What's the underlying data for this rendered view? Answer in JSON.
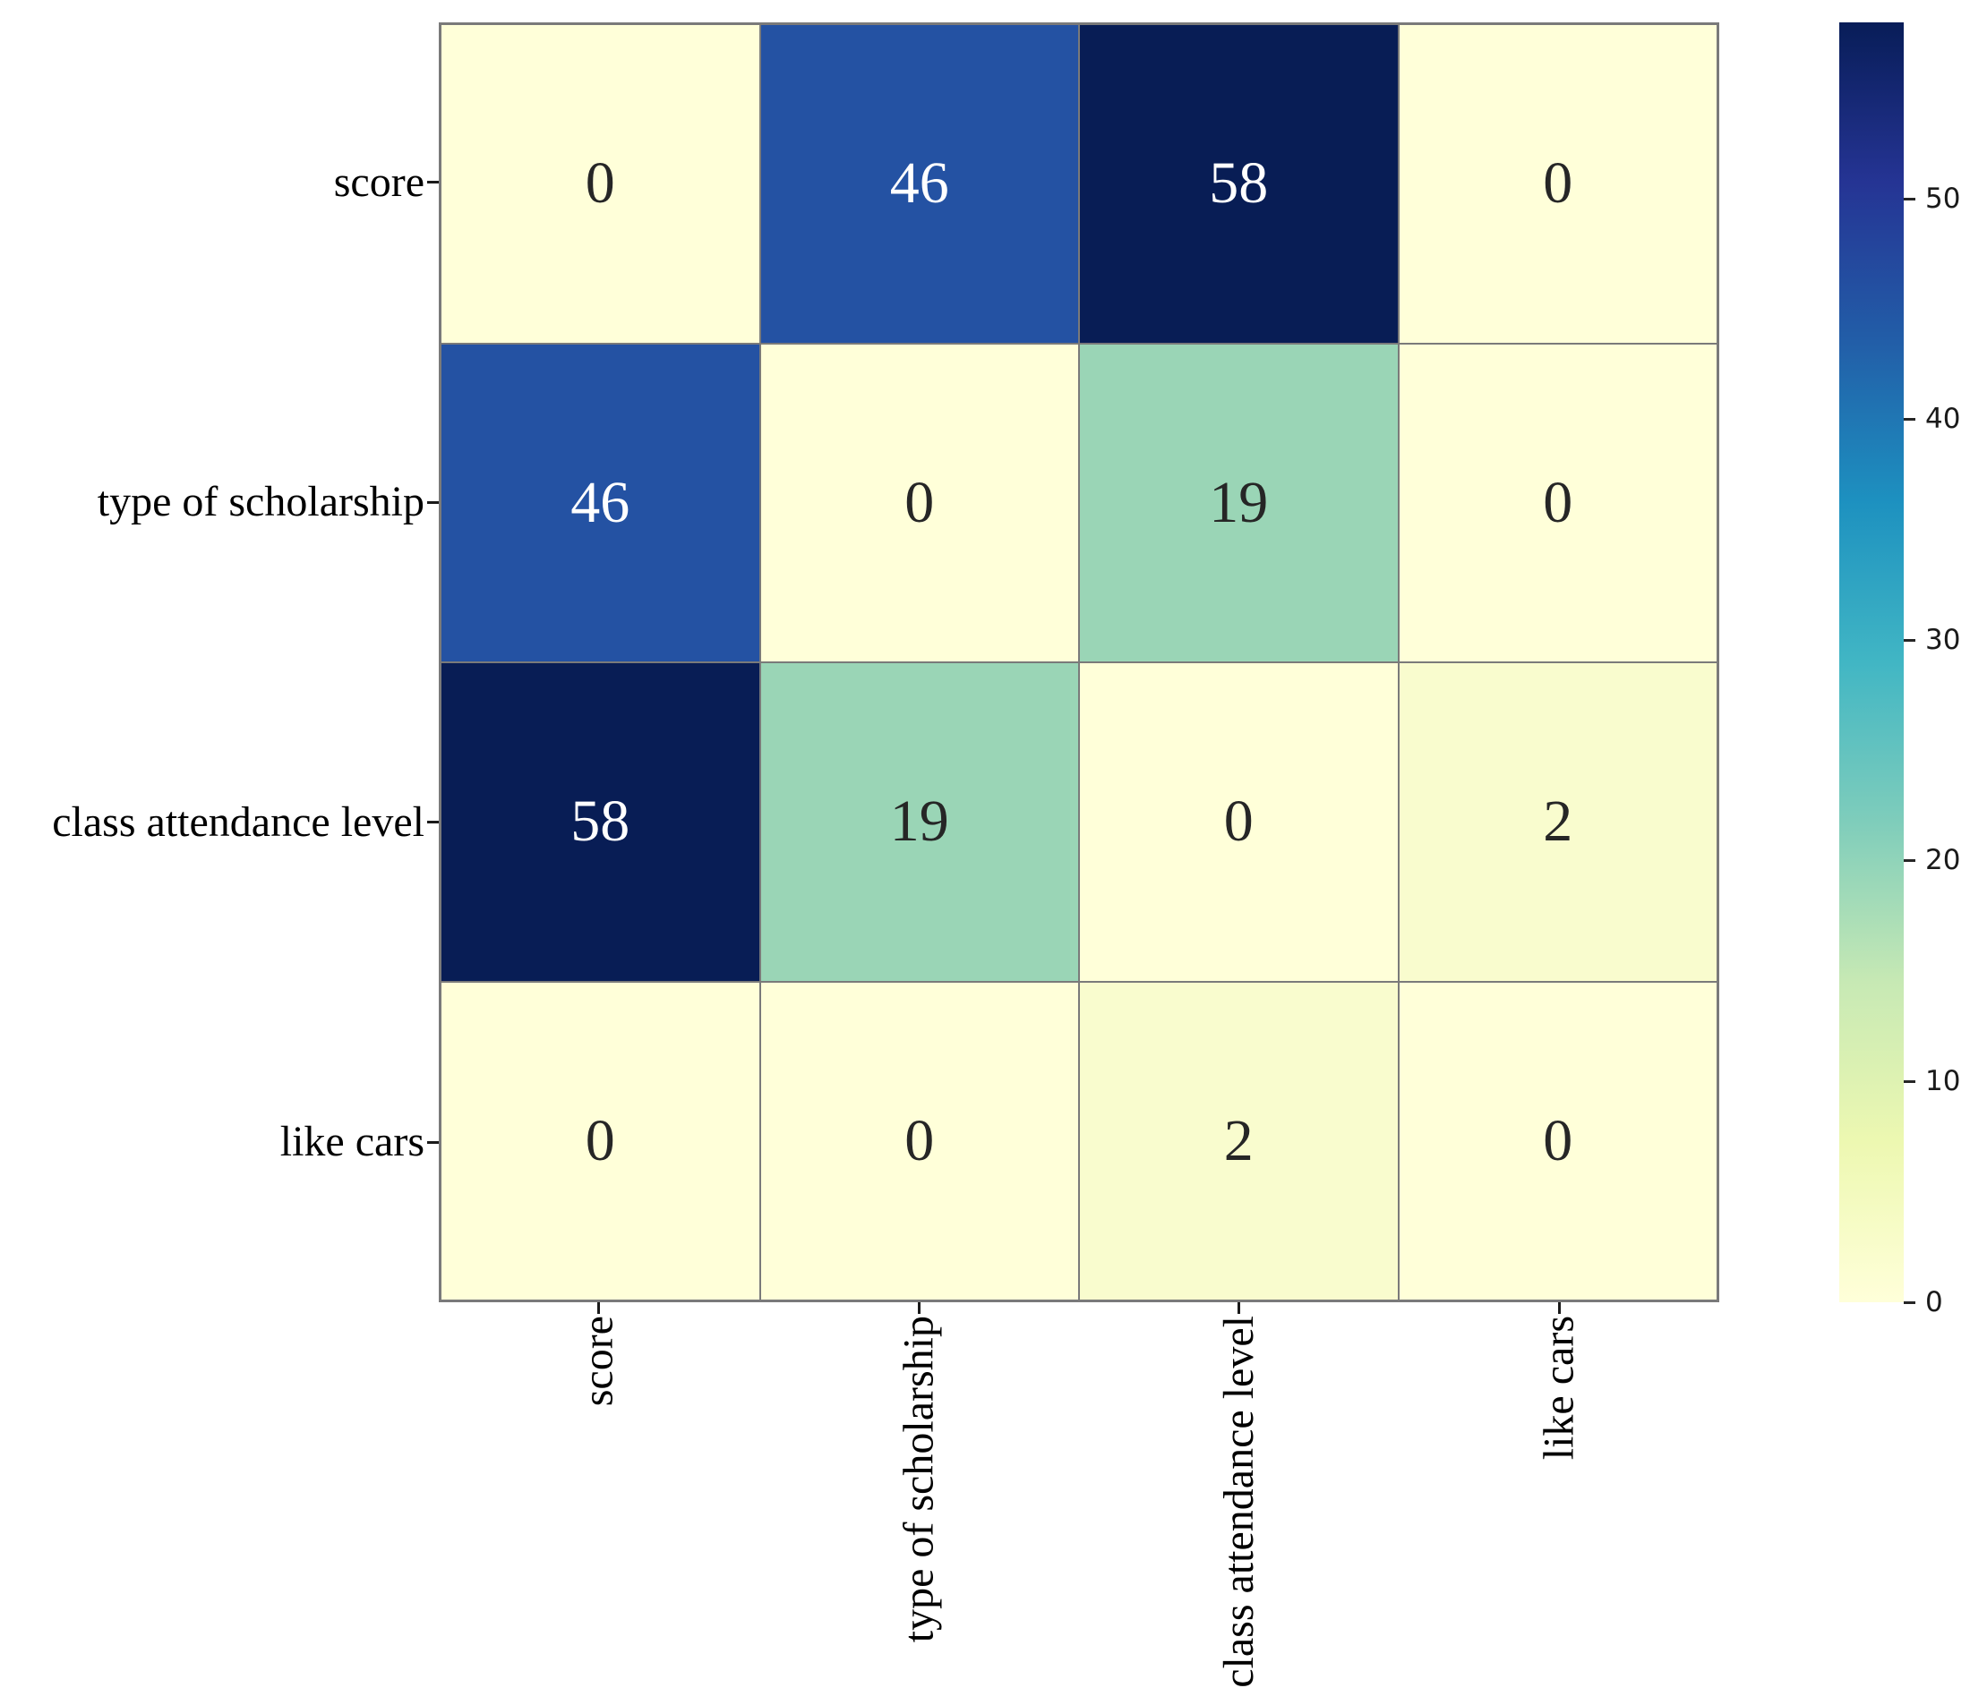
{
  "chart_data": {
    "type": "heatmap",
    "title": "",
    "xlabel": "",
    "ylabel": "",
    "categories": [
      "score",
      "type of scholarship",
      "class attendance level",
      "like cars"
    ],
    "matrix": [
      [
        0,
        46,
        58,
        0
      ],
      [
        46,
        0,
        19,
        0
      ],
      [
        58,
        19,
        0,
        2
      ],
      [
        0,
        0,
        2,
        0
      ]
    ],
    "vmin": 0,
    "vmax": 58,
    "annotations": true,
    "grid_on": true,
    "grid_color": "#7a7a7a",
    "colormap": "YlGnBu",
    "legend_position": "right-colorbar",
    "colorbar_ticks": [
      0,
      10,
      20,
      30,
      40,
      50
    ],
    "value_styles": {
      "0": {
        "bg": "#ffffd9",
        "fg": "#262626"
      },
      "2": {
        "bg": "#f9fcce",
        "fg": "#262626"
      },
      "19": {
        "bg": "#9ad5b6",
        "fg": "#262626"
      },
      "46": {
        "bg": "#2452a3",
        "fg": "#ffffff"
      },
      "58": {
        "bg": "#081d55",
        "fg": "#ffffff"
      }
    },
    "gradient_stops": [
      {
        "pos": 0.0,
        "color": "#ffffd9"
      },
      {
        "pos": 0.125,
        "color": "#edf8b1"
      },
      {
        "pos": 0.25,
        "color": "#c7e9b4"
      },
      {
        "pos": 0.375,
        "color": "#7fcdbb"
      },
      {
        "pos": 0.5,
        "color": "#41b6c4"
      },
      {
        "pos": 0.625,
        "color": "#1d91c0"
      },
      {
        "pos": 0.75,
        "color": "#225ea8"
      },
      {
        "pos": 0.875,
        "color": "#253494"
      },
      {
        "pos": 1.0,
        "color": "#081d58"
      }
    ]
  }
}
